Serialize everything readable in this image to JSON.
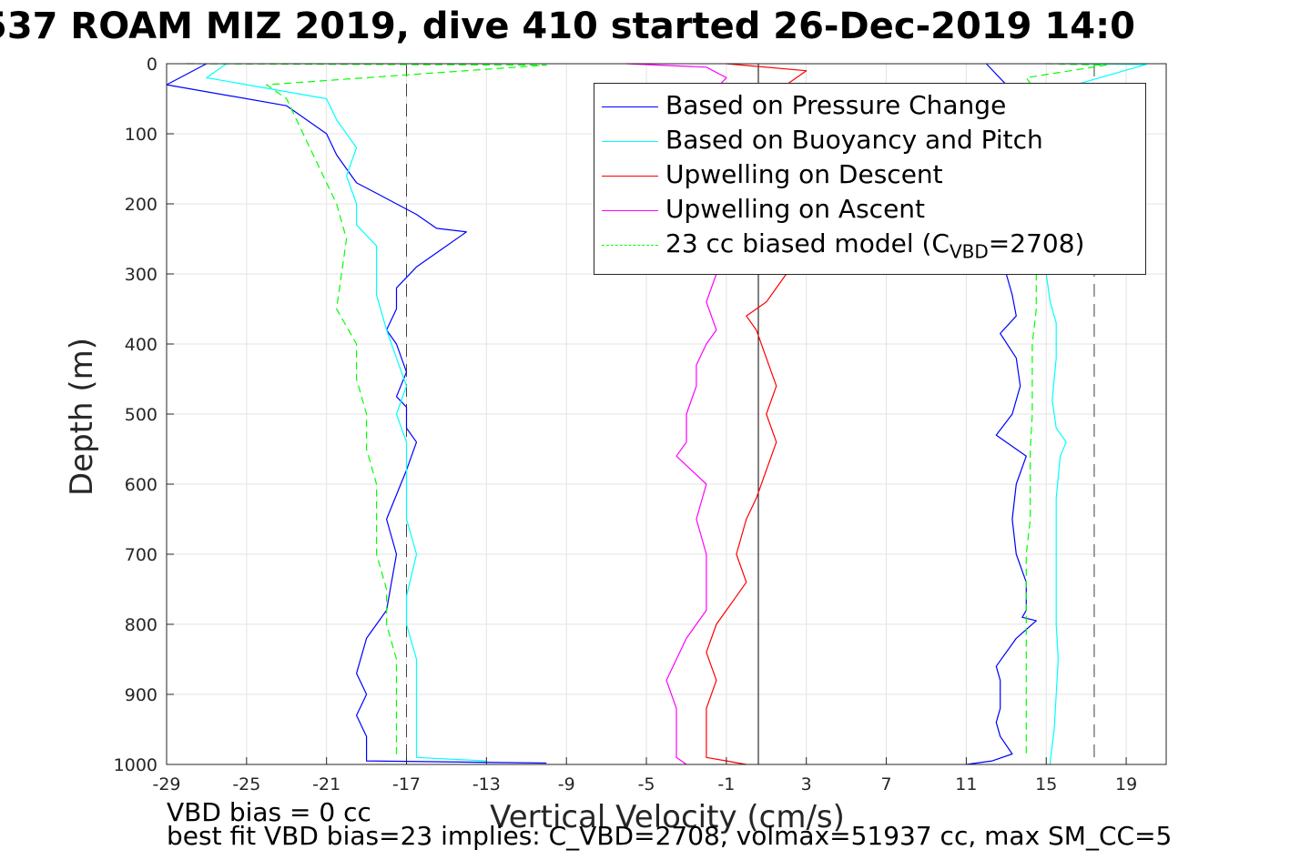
{
  "page": {
    "title": "537 ROAM MIZ 2019, dive 410 started 26-Dec-2019 14:0",
    "footer_line1": "VBD bias = 0 cc",
    "footer_line2": "best fit VBD bias=23 implies: C_VBD=2708, volmax=51937 cc, max SM_CC=5"
  },
  "chart_data": {
    "type": "line",
    "title": "537 ROAM MIZ 2019, dive 410 started 26-Dec-2019 14:0",
    "xlabel": "Vertical Velocity (cm/s)",
    "ylabel": "Depth (m)",
    "xlim": [
      -29,
      21
    ],
    "ylim": [
      1000,
      0
    ],
    "y_reversed": true,
    "grid": true,
    "x_ticks": [
      -29,
      -25,
      -21,
      -17,
      -13,
      -9,
      -5,
      -1,
      3,
      7,
      11,
      15,
      19
    ],
    "x_tick_labels": [
      "-29",
      "-25",
      "-21",
      "-17",
      "-13",
      "-9",
      "-5",
      "-1",
      "3",
      "7",
      "11",
      "15",
      "19"
    ],
    "y_ticks": [
      0,
      100,
      200,
      300,
      400,
      500,
      600,
      700,
      800,
      900,
      1000
    ],
    "y_tick_labels": [
      "0",
      "100",
      "200",
      "300",
      "400",
      "500",
      "600",
      "700",
      "800",
      "900",
      "1000"
    ],
    "legend": {
      "placement": "top-right",
      "entries": [
        {
          "label": "Based on Pressure Change",
          "color": "#0000ff",
          "style": "solid"
        },
        {
          "label": "Based on Buoyancy and Pitch",
          "color": "#00ffff",
          "style": "solid"
        },
        {
          "label": "Upwelling on Descent",
          "color": "#ff0000",
          "style": "solid"
        },
        {
          "label": "Upwelling on Ascent",
          "color": "#ff00ff",
          "style": "solid"
        },
        {
          "label_main": "23 cc biased model (C",
          "label_sub": "VBD",
          "label_tail": "=2708)",
          "color": "#00ff00",
          "style": "dashed"
        }
      ]
    },
    "reference_lines": [
      {
        "x": -17,
        "style": "dashed",
        "color": "#404040"
      },
      {
        "x": 0.6,
        "style": "solid",
        "color": "#000000"
      },
      {
        "x": 17.4,
        "style": "dashed",
        "color": "#404040"
      }
    ],
    "series": [
      {
        "name": "Based on Pressure Change",
        "color": "#0000ff",
        "style": "solid",
        "branches": [
          {
            "x": [
              -27,
              -29,
              -23,
              -21,
              -20.5,
              -20,
              -19.5,
              -18.5,
              -17.5,
              -16.5,
              -15.5,
              -14,
              -15.5,
              -16.5,
              -17.5,
              -17.5,
              -18,
              -17.5,
              -17,
              -17.5,
              -17,
              -17,
              -16.5,
              -17,
              -18,
              -17.5,
              -18,
              -19,
              -19.5,
              -19,
              -19.5,
              -19,
              -19,
              -10
            ],
            "y": [
              0,
              30,
              60,
              100,
              130,
              150,
              170,
              185,
              200,
              215,
              235,
              240,
              270,
              290,
              320,
              350,
              380,
              400,
              440,
              475,
              490,
              520,
              540,
              580,
              650,
              700,
              780,
              820,
              870,
              900,
              930,
              960,
              995,
              998
            ]
          },
          {
            "x": [
              12,
              13,
              14,
              13,
              13.3,
              13.5,
              12.7,
              13.5,
              13.7,
              13.3,
              12.5,
              14,
              13.5,
              13.3,
              13.5,
              14,
              14,
              13.8,
              14.5,
              13.5,
              12.5,
              12.7,
              12.7,
              12.5,
              12.7,
              13.3,
              12.3,
              11
            ],
            "y": [
              0,
              30,
              50,
              300,
              330,
              360,
              385,
              420,
              460,
              500,
              530,
              560,
              600,
              650,
              700,
              740,
              780,
              790,
              795,
              820,
              860,
              880,
              920,
              940,
              960,
              985,
              995,
              1000
            ]
          }
        ]
      },
      {
        "name": "Based on Buoyancy and Pitch",
        "color": "#00ffff",
        "style": "solid",
        "branches": [
          {
            "x": [
              -26,
              -27,
              -21,
              -20.5,
              -19.5,
              -20,
              -19.5,
              -19.5,
              -18.5,
              -18.5,
              -18.5,
              -18,
              -17.5,
              -17,
              -17.5,
              -17,
              -17,
              -17,
              -16.5,
              -17,
              -17,
              -16.5,
              -16.5,
              -16.5,
              -13
            ],
            "y": [
              0,
              20,
              50,
              80,
              120,
              160,
              200,
              230,
              260,
              290,
              330,
              380,
              420,
              460,
              500,
              540,
              590,
              650,
              700,
              760,
              800,
              850,
              900,
              990,
              995
            ]
          },
          {
            "x": [
              16,
              20,
              14,
              15,
              15.2,
              15.5,
              15.5,
              15.3,
              15.5,
              16,
              15.7,
              15.5,
              15.5,
              15.5,
              15.5,
              15.6,
              15.5,
              15.4,
              15.2,
              15.2
            ],
            "y": [
              0,
              1,
              50,
              300,
              340,
              370,
              420,
              480,
              520,
              540,
              560,
              620,
              700,
              760,
              800,
              850,
              900,
              950,
              995,
              1000
            ]
          }
        ]
      },
      {
        "name": "Upwelling on Descent",
        "color": "#ff0000",
        "style": "solid",
        "branches": [
          {
            "x": [
              -1,
              3,
              2,
              1,
              1.5,
              2,
              1.5,
              1,
              0,
              0.5,
              1,
              1.5,
              1,
              1.5,
              1,
              0.5,
              0,
              -0.5,
              0,
              -0.5,
              -1,
              -1.5,
              -2,
              -1.5,
              -2,
              -2,
              -2,
              -1,
              0
            ],
            "y": [
              0,
              10,
              30,
              50,
              80,
              300,
              320,
              340,
              360,
              380,
              420,
              460,
              500,
              540,
              580,
              620,
              650,
              700,
              740,
              760,
              780,
              800,
              840,
              880,
              920,
              960,
              990,
              995,
              1000
            ]
          }
        ]
      },
      {
        "name": "Upwelling on Ascent",
        "color": "#ff00ff",
        "style": "solid",
        "branches": [
          {
            "x": [
              -6,
              -2,
              -1,
              -2,
              -1.5,
              -2,
              -1.5,
              -2,
              -2.5,
              -2.5,
              -3,
              -3,
              -3.5,
              -2,
              -2.5,
              -2,
              -2,
              -2,
              -2.5,
              -3,
              -3.5,
              -4,
              -3.5,
              -3.5,
              -3.5,
              -3
            ],
            "y": [
              0,
              5,
              20,
              50,
              300,
              340,
              380,
              400,
              430,
              460,
              500,
              540,
              560,
              600,
              650,
              700,
              740,
              780,
              800,
              820,
              850,
              880,
              920,
              960,
              990,
              1000
            ]
          }
        ]
      },
      {
        "name": "23 cc biased model (C_VBD=2708)",
        "color": "#00ff00",
        "style": "dashed",
        "branches": [
          {
            "x": [
              -28,
              -10,
              -24,
              -23,
              -22.5,
              -22,
              -21.5,
              -21,
              -20.5,
              -20,
              -20.5,
              -19.5,
              -19.5,
              -19,
              -19,
              -18.5,
              -18.5,
              -18.5,
              -18,
              -18,
              -17.5,
              -17.5,
              -17.5
            ],
            "y": [
              0,
              2,
              30,
              50,
              80,
              110,
              140,
              170,
              200,
              250,
              350,
              400,
              450,
              500,
              550,
              600,
              650,
              700,
              750,
              800,
              850,
              900,
              990
            ]
          },
          {
            "x": [
              15,
              18,
              14,
              15,
              14.5,
              14.5,
              14.3,
              14.3,
              14.3,
              14.2,
              14.2,
              14.2,
              14,
              14,
              14
            ],
            "y": [
              0,
              2,
              20,
              60,
              300,
              350,
              400,
              450,
              500,
              550,
              600,
              650,
              700,
              800,
              990
            ]
          }
        ]
      }
    ]
  }
}
